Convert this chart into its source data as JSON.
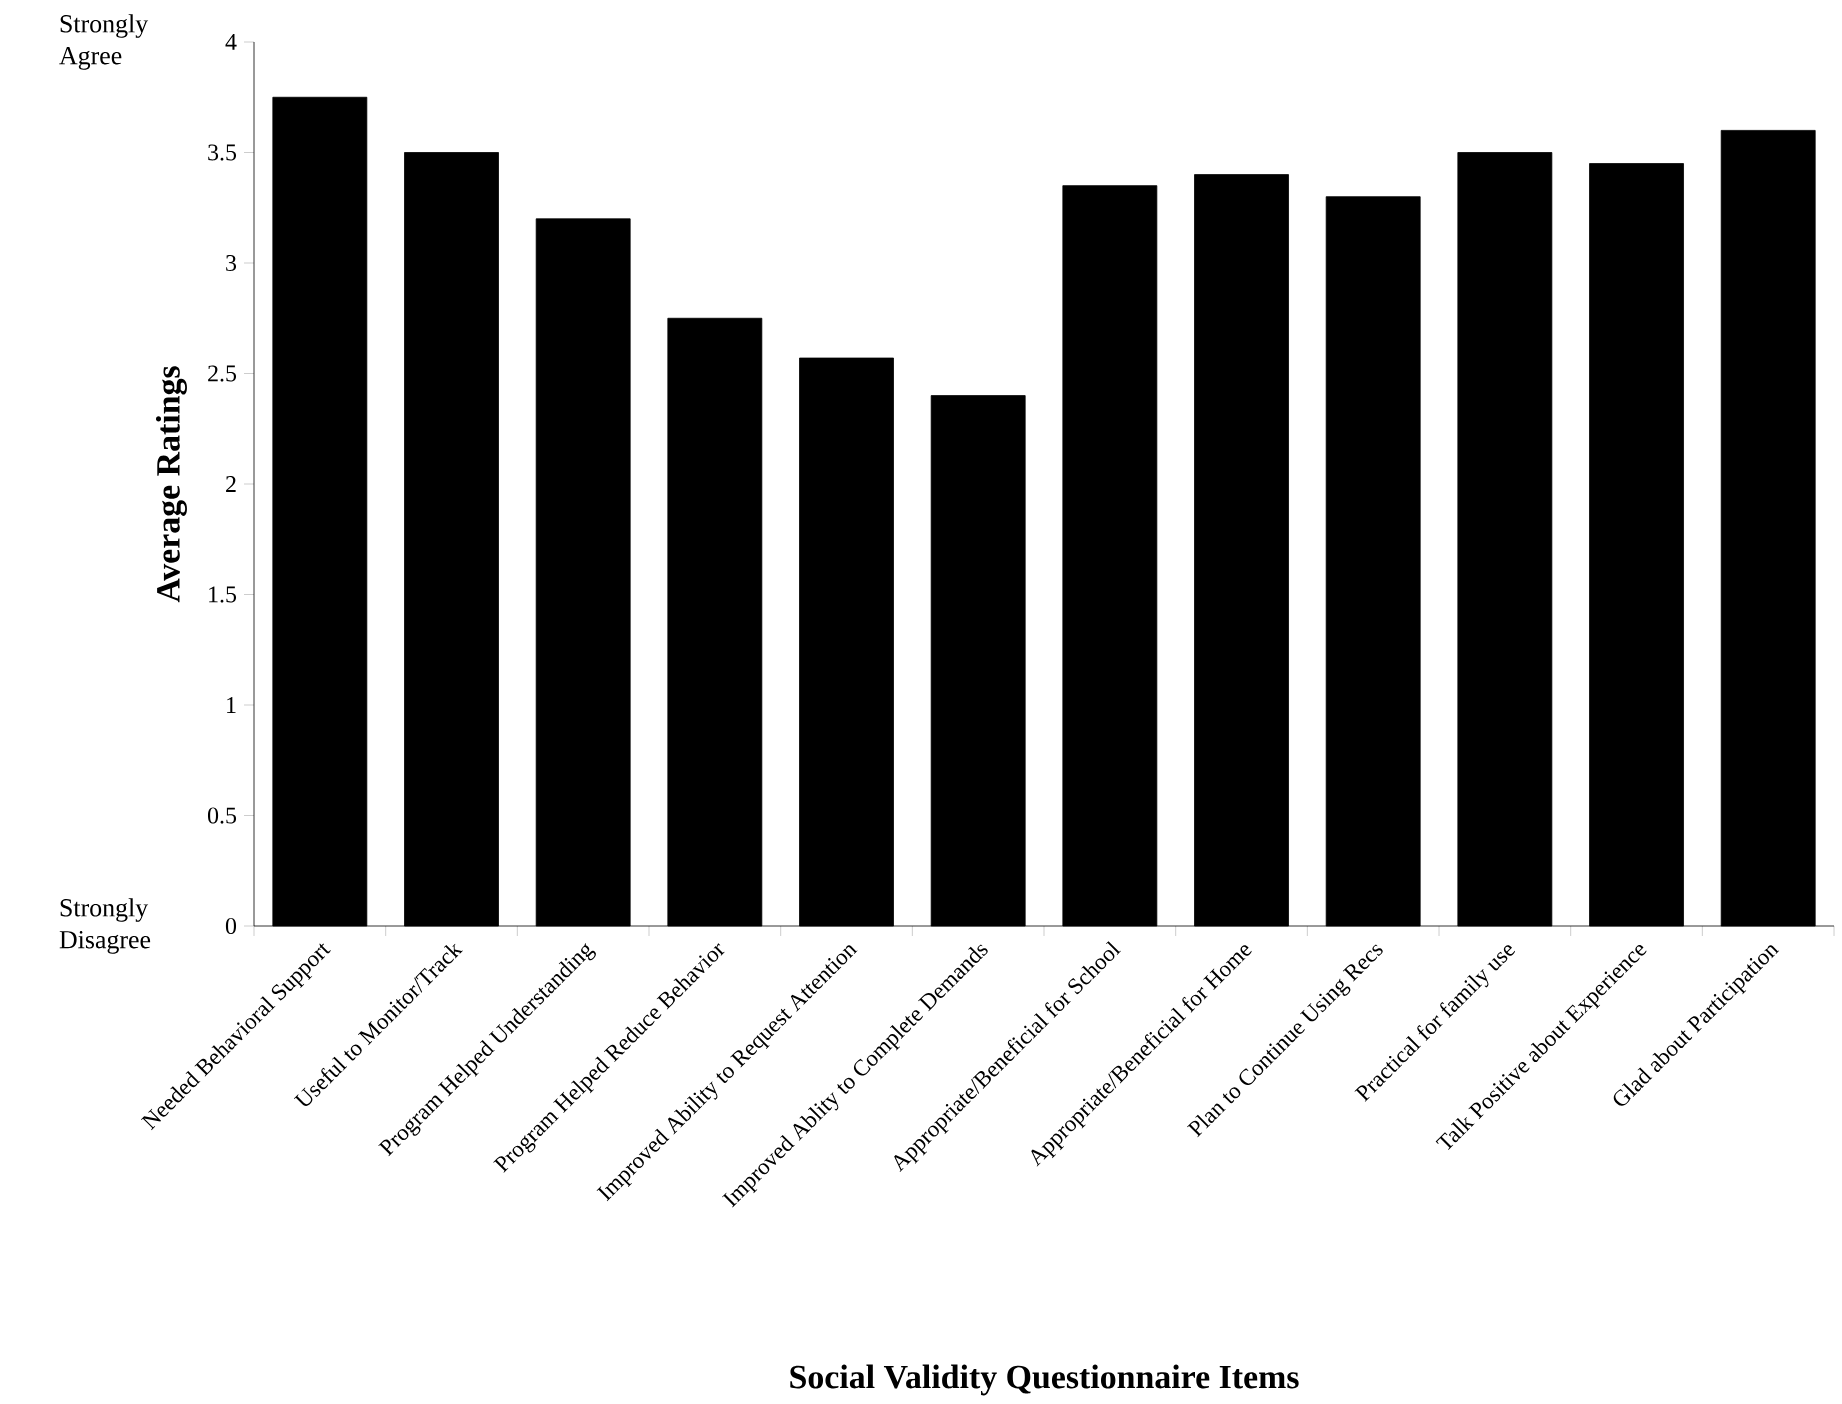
{
  "chart_data": {
    "type": "bar",
    "xlabel": "Social Validity Questionnaire Items",
    "ylabel": "Average Ratings",
    "categories": [
      "Needed Behavioral Support",
      "Useful to Monitor/Track",
      "Program Helped Understanding",
      "Program Helped Reduce Behavior",
      "Improved Ability to Request Attention",
      "Improved Ablity to Complete Demands",
      "Appropriate/Beneficial for School",
      "Appropriate/Beneficial for Home",
      "Plan to Continue Using Recs",
      "Practical for family use",
      "Talk Positive about Experience",
      "Glad about Participation"
    ],
    "values": [
      3.75,
      3.5,
      3.2,
      2.75,
      2.57,
      2.4,
      3.35,
      3.4,
      3.3,
      3.5,
      3.45,
      3.6
    ],
    "color": "#000000",
    "ylim": [
      0,
      4
    ],
    "yticks": [
      0,
      0.5,
      1,
      1.5,
      2,
      2.5,
      3,
      3.5,
      4
    ],
    "grid": false,
    "annotations": [
      "Strongly Agree",
      "Strongly Disagree"
    ]
  }
}
